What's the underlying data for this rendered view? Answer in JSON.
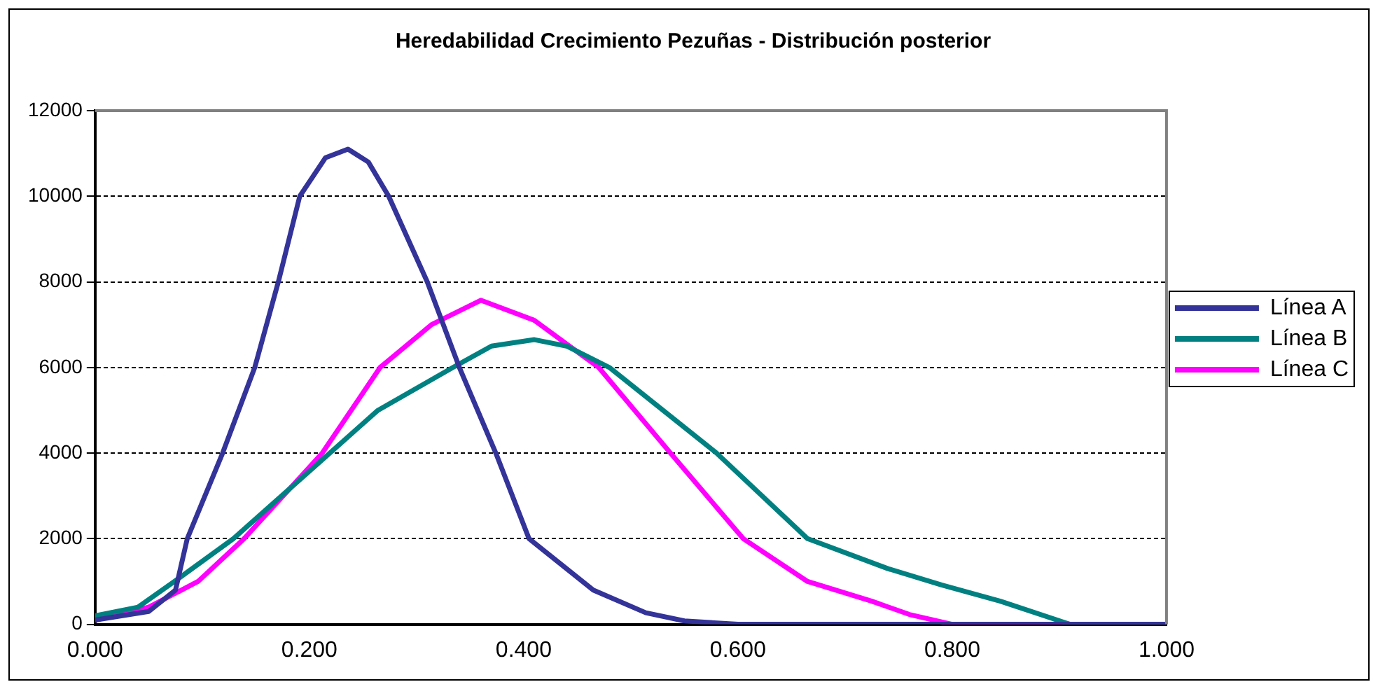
{
  "chart_data": {
    "type": "line",
    "title": "Heredabilidad Crecimiento Pezuñas - Distribución posterior",
    "xlim": [
      0,
      1
    ],
    "xticks": [
      {
        "value": 0,
        "label": "0.000"
      },
      {
        "value": 0.2,
        "label": "0.200"
      },
      {
        "value": 0.4,
        "label": "0.400"
      },
      {
        "value": 0.6,
        "label": "0.600"
      },
      {
        "value": 0.8,
        "label": "0.800"
      },
      {
        "value": 1,
        "label": "1.000"
      }
    ],
    "ylim": [
      0,
      12000
    ],
    "yticks": [
      0,
      2000,
      4000,
      6000,
      8000,
      10000,
      12000
    ],
    "grid": "y",
    "legend": "right",
    "marker": "none",
    "line_style": "solid",
    "series": [
      {
        "name": "Línea A",
        "color": "#333399",
        "x": [
          0,
          0.05,
          0.075,
          0.086,
          0.119,
          0.149,
          0.171,
          0.191,
          0.215,
          0.236,
          0.255,
          0.274,
          0.31,
          0.34,
          0.374,
          0.405,
          0.465,
          0.514,
          0.55,
          0.6,
          0.8,
          1
        ],
        "values": [
          100,
          300,
          800,
          2000,
          4000,
          6000,
          8000,
          10000,
          10900,
          11100,
          10800,
          10000,
          8000,
          6000,
          4000,
          2000,
          800,
          270,
          80,
          0,
          0,
          0
        ]
      },
      {
        "name": "Línea B",
        "color": "#008080",
        "x": [
          0,
          0.04,
          0.074,
          0.129,
          0.219,
          0.264,
          0.334,
          0.37,
          0.41,
          0.44,
          0.48,
          0.58,
          0.665,
          0.74,
          0.79,
          0.845,
          0.91,
          1
        ],
        "values": [
          200,
          400,
          1000,
          2000,
          4000,
          5000,
          6000,
          6500,
          6650,
          6500,
          6000,
          4000,
          2000,
          1300,
          920,
          540,
          0,
          0
        ]
      },
      {
        "name": "Línea C",
        "color": "#ff00ff",
        "x": [
          0,
          0.05,
          0.096,
          0.139,
          0.212,
          0.266,
          0.314,
          0.36,
          0.41,
          0.47,
          0.537,
          0.605,
          0.665,
          0.725,
          0.76,
          0.8,
          1
        ],
        "values": [
          100,
          400,
          1000,
          2000,
          4000,
          6000,
          7000,
          7570,
          7100,
          6000,
          4000,
          2000,
          1000,
          540,
          230,
          0,
          0
        ]
      }
    ]
  }
}
